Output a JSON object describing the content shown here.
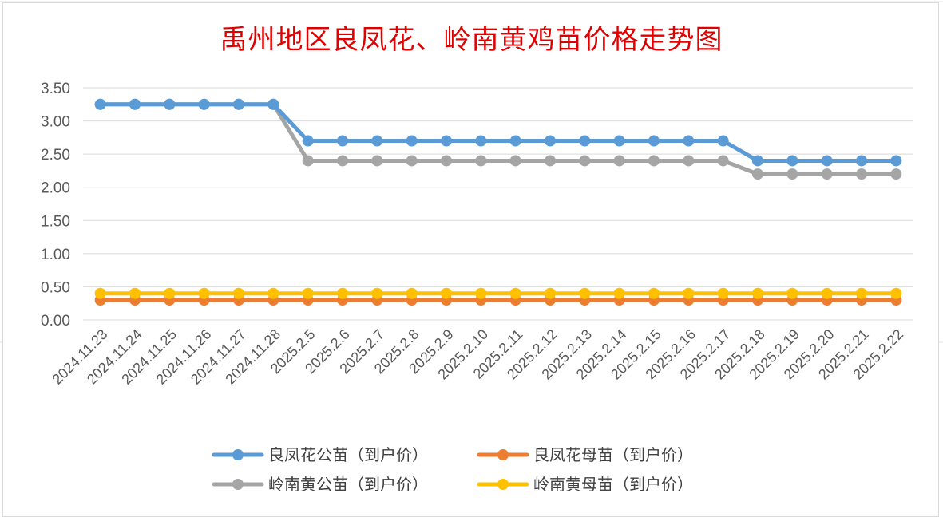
{
  "chart_data": {
    "type": "line",
    "title": "禹州地区良凤花、岭南黄鸡苗价格走势图",
    "xlabel": "",
    "ylabel": "",
    "ylim": [
      0,
      3.5
    ],
    "y_ticks": [
      "0.00",
      "0.50",
      "1.00",
      "1.50",
      "2.00",
      "2.50",
      "3.00",
      "3.50"
    ],
    "grid": true,
    "legend_position": "bottom",
    "categories": [
      "2024.11.23",
      "2024.11.24",
      "2024.11.25",
      "2024.11.26",
      "2024.11.27",
      "2024.11.28",
      "2025.2.5",
      "2025.2.6",
      "2025.2.7",
      "2025.2.8",
      "2025.2.9",
      "2025.2.10",
      "2025.2.11",
      "2025.2.12",
      "2025.2.13",
      "2025.2.14",
      "2025.2.15",
      "2025.2.16",
      "2025.2.17",
      "2025.2.18",
      "2025.2.19",
      "2025.2.20",
      "2025.2.21",
      "2025.2.22"
    ],
    "series": [
      {
        "name": "良凤花公苗（到户价）",
        "color": "#5b9bd5",
        "values": [
          3.25,
          3.25,
          3.25,
          3.25,
          3.25,
          3.25,
          2.7,
          2.7,
          2.7,
          2.7,
          2.7,
          2.7,
          2.7,
          2.7,
          2.7,
          2.7,
          2.7,
          2.7,
          2.7,
          2.4,
          2.4,
          2.4,
          2.4,
          2.4
        ]
      },
      {
        "name": "良凤花母苗（到户价）",
        "color": "#ed7d31",
        "values": [
          0.3,
          0.3,
          0.3,
          0.3,
          0.3,
          0.3,
          0.3,
          0.3,
          0.3,
          0.3,
          0.3,
          0.3,
          0.3,
          0.3,
          0.3,
          0.3,
          0.3,
          0.3,
          0.3,
          0.3,
          0.3,
          0.3,
          0.3,
          0.3
        ]
      },
      {
        "name": "岭南黄公苗（到户价）",
        "color": "#a5a5a5",
        "values": [
          3.25,
          3.25,
          3.25,
          3.25,
          3.25,
          3.25,
          2.4,
          2.4,
          2.4,
          2.4,
          2.4,
          2.4,
          2.4,
          2.4,
          2.4,
          2.4,
          2.4,
          2.4,
          2.4,
          2.2,
          2.2,
          2.2,
          2.2,
          2.2
        ]
      },
      {
        "name": "岭南黄母苗（到户价）",
        "color": "#ffc000",
        "values": [
          0.4,
          0.4,
          0.4,
          0.4,
          0.4,
          0.4,
          0.4,
          0.4,
          0.4,
          0.4,
          0.4,
          0.4,
          0.4,
          0.4,
          0.4,
          0.4,
          0.4,
          0.4,
          0.4,
          0.4,
          0.4,
          0.4,
          0.4,
          0.4
        ]
      }
    ]
  }
}
